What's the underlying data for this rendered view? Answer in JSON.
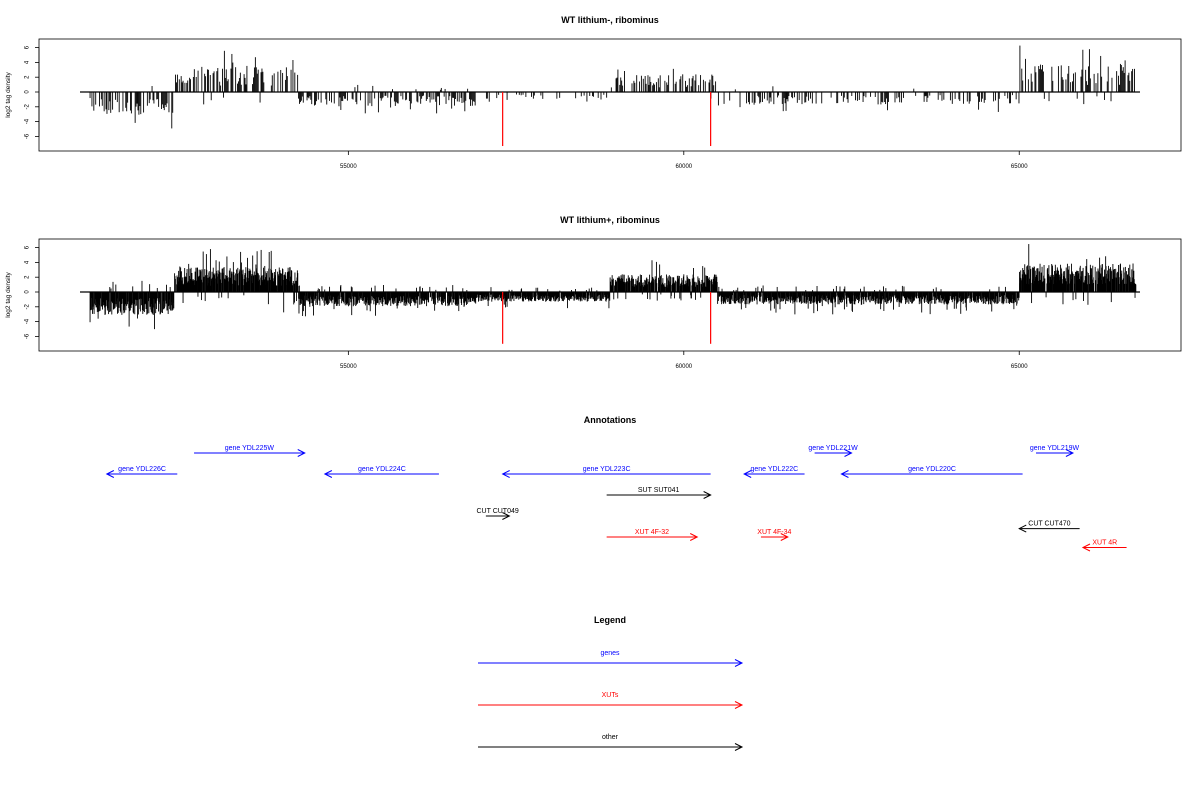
{
  "colors": {
    "gene": "#0000ff",
    "xut": "#ff0000",
    "other": "#000000",
    "highlight": "#ff0000",
    "bar": "#000000"
  },
  "chart_data": [
    {
      "type": "bar",
      "title": "WT lithium-, ribominus",
      "ylabel": "log2 tag density",
      "xlim": [
        51000,
        66800
      ],
      "ylim": [
        -8,
        7
      ],
      "xticks": [
        "55000",
        "60000",
        "65000"
      ],
      "yticks": [
        "-6",
        "-4",
        "-2",
        "0",
        "2",
        "4",
        "6"
      ],
      "highlight_x": [
        57300,
        60400
      ],
      "highlight_y": -7.3,
      "density": "sparse"
    },
    {
      "type": "bar",
      "title": "WT lithium+, ribominus",
      "ylabel": "log2 tag density",
      "xlim": [
        51000,
        66800
      ],
      "ylim": [
        -8,
        7
      ],
      "xticks": [
        "55000",
        "60000",
        "65000"
      ],
      "yticks": [
        "-6",
        "-4",
        "-2",
        "0",
        "2",
        "4",
        "6"
      ],
      "highlight_x": [
        57300,
        60400
      ],
      "highlight_y": -7.0,
      "density": "dense"
    }
  ],
  "annotations": {
    "title": "Annotations",
    "features": [
      {
        "label": "gene YDL226C",
        "type": "gene",
        "strand": "-",
        "start": 51400,
        "end": 52450,
        "row": 2,
        "label_above": true
      },
      {
        "label": "gene YDL225W",
        "type": "gene",
        "strand": "+",
        "start": 52700,
        "end": 54350,
        "row": 1,
        "label_above": true
      },
      {
        "label": "gene YDL224C",
        "type": "gene",
        "strand": "-",
        "start": 54650,
        "end": 56350,
        "row": 2,
        "label_above": true
      },
      {
        "label": "gene YDL223C",
        "type": "gene",
        "strand": "-",
        "start": 57300,
        "end": 60400,
        "row": 2,
        "label_above": true
      },
      {
        "label": "gene YDL222C",
        "type": "gene",
        "strand": "-",
        "start": 60900,
        "end": 61800,
        "row": 2,
        "label_above": true
      },
      {
        "label": "gene YDL221W",
        "type": "gene",
        "strand": "+",
        "start": 61950,
        "end": 62500,
        "row": 1,
        "label_above": true
      },
      {
        "label": "gene YDL220C",
        "type": "gene",
        "strand": "-",
        "start": 62350,
        "end": 65050,
        "row": 2,
        "label_above": true
      },
      {
        "label": "gene YDL219W",
        "type": "gene",
        "strand": "+",
        "start": 65250,
        "end": 65800,
        "row": 1,
        "label_above": true
      },
      {
        "label": "SUT SUT041",
        "type": "other",
        "strand": "+",
        "start": 58850,
        "end": 60400,
        "row": 3,
        "label_above": true
      },
      {
        "label": "CUT CUT049",
        "type": "other",
        "strand": "+",
        "start": 57050,
        "end": 57400,
        "row": 4,
        "label_above": true
      },
      {
        "label": "XUT 4F-32",
        "type": "xut",
        "strand": "+",
        "start": 58850,
        "end": 60200,
        "row": 5,
        "label_above": true
      },
      {
        "label": "XUT 4F-34",
        "type": "xut",
        "strand": "+",
        "start": 61150,
        "end": 61550,
        "row": 5,
        "label_above": true
      },
      {
        "label": "CUT CUT470",
        "type": "other",
        "strand": "-",
        "start": 65000,
        "end": 65900,
        "row": 4.6,
        "label_above": true
      },
      {
        "label": "XUT 4R",
        "type": "xut",
        "strand": "-",
        "start": 65950,
        "end": 66600,
        "row": 5.5,
        "label_above": true
      }
    ]
  },
  "legend": {
    "title": "Legend",
    "items": [
      {
        "label": "genes",
        "type": "gene"
      },
      {
        "label": "XUTs",
        "type": "xut"
      },
      {
        "label": "other",
        "type": "other"
      }
    ]
  }
}
